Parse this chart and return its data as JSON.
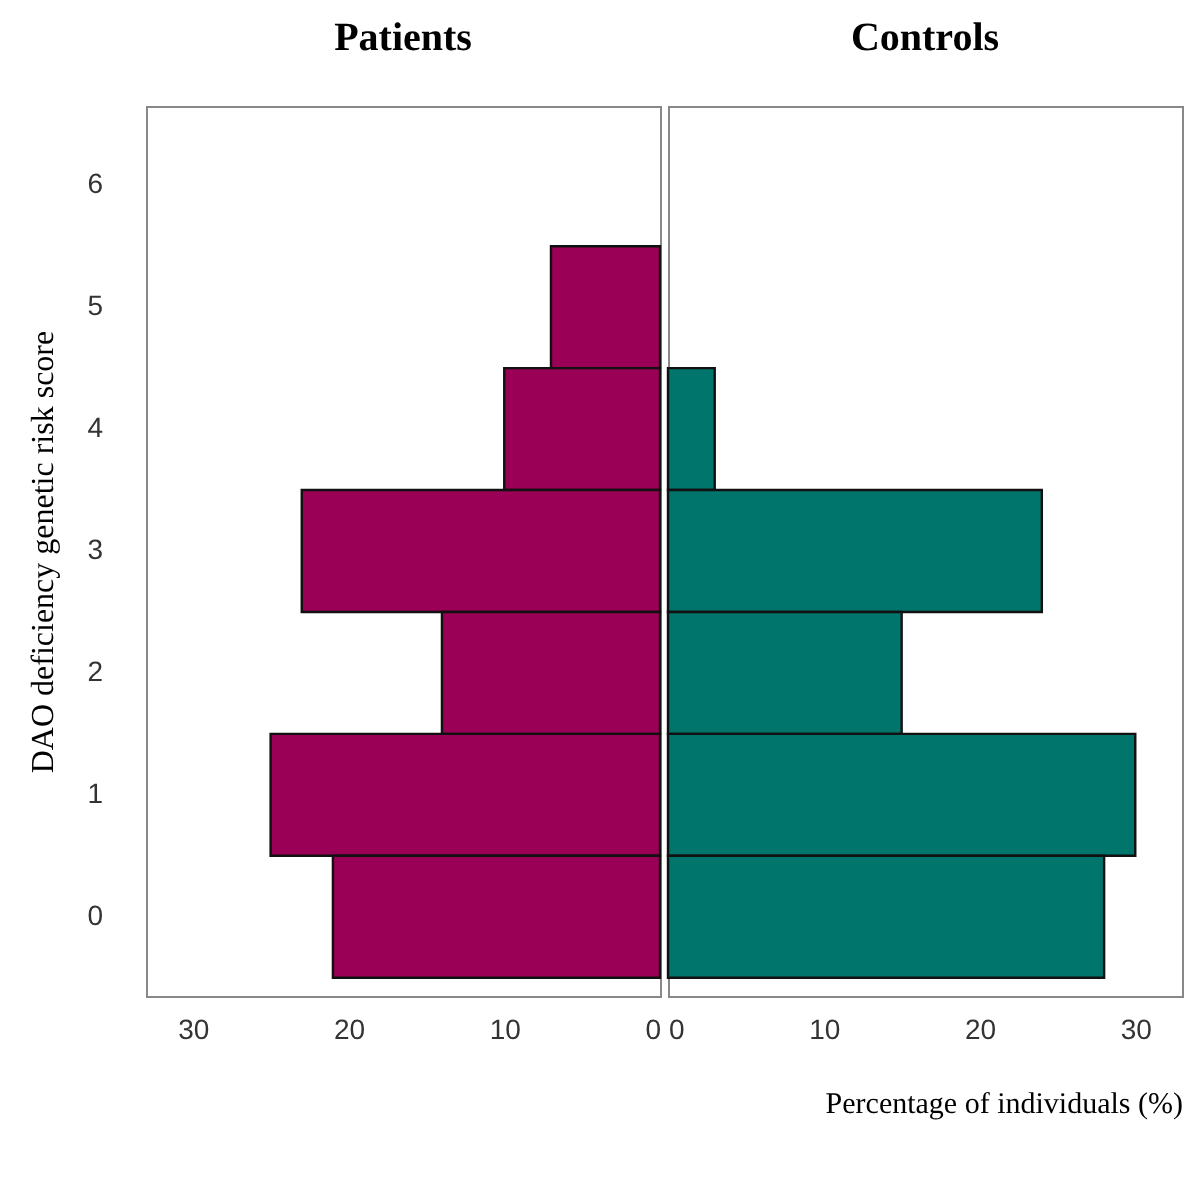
{
  "chart_data": [
    {
      "type": "bar",
      "orientation": "horizontal",
      "title": "Patients",
      "ylabel": "DAO deficiency genetic risk score",
      "categories": [
        "6",
        "5",
        "4",
        "3",
        "2",
        "1",
        "0"
      ],
      "series": [
        {
          "color": "#9b0057",
          "values": [
            null,
            7,
            10,
            23,
            14,
            25,
            21
          ]
        }
      ],
      "xlim": [
        33,
        0
      ],
      "xticks": [
        30,
        20,
        10,
        0
      ],
      "grid": false,
      "legend": false
    },
    {
      "type": "bar",
      "orientation": "horizontal",
      "title": "Controls",
      "xlabel": "Percentage of individuals (%)",
      "categories": [
        "6",
        "5",
        "4",
        "3",
        "2",
        "1",
        "0"
      ],
      "series": [
        {
          "color": "#00756b",
          "values": [
            null,
            null,
            3,
            24,
            15,
            30,
            28
          ]
        }
      ],
      "xlim": [
        0,
        33
      ],
      "xticks": [
        0,
        10,
        20,
        30
      ],
      "tick_labels": "x",
      "grid": false,
      "legend": false
    }
  ]
}
